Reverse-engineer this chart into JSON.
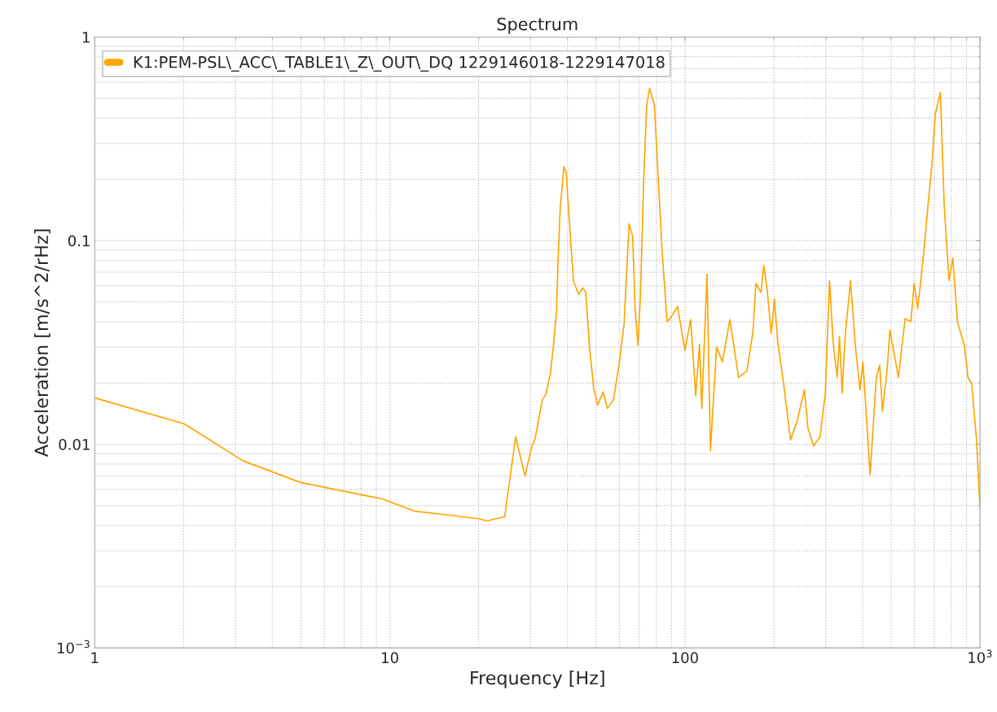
{
  "chart_data": {
    "type": "line",
    "title": "Spectrum",
    "xlabel": "Frequency [Hz]",
    "ylabel": "Acceleration [m/s^2/rHz]",
    "log": "xy",
    "grid": true,
    "legend": "top left",
    "marker": "none",
    "line_style": "solid",
    "xlim": [
      1,
      1000
    ],
    "xticks": [
      1,
      10,
      100,
      {
        "value": 1000,
        "label": "10$^{3}$"
      }
    ],
    "ylim": [
      0.001,
      1
    ],
    "yticks": [
      {
        "value": 0.001,
        "label": "10$^{−3}$"
      },
      0.01,
      0.1,
      1
    ],
    "series": [
      {
        "name": "K1:PEM-PSL\\_ACC\\_TABLE1\\_Z\\_OUT\\_DQ 1229146018-1229147018",
        "color": "#ffa500",
        "x": [
          1,
          2.01,
          3.18,
          4.97,
          8.28,
          9.4,
          12.1,
          16.7,
          20.2,
          21.3,
          22.7,
          24.5,
          26.7,
          28.7,
          30.3,
          31.0,
          32.9,
          33.8,
          35.0,
          35.8,
          36.7,
          37.1,
          37.8,
          38.9,
          39.6,
          40.6,
          41.9,
          43.6,
          45.1,
          46.1,
          47.5,
          49.1,
          50.6,
          52.8,
          54.6,
          57.3,
          60.0,
          62.2,
          63.6,
          64.7,
          66.5,
          67.8,
          69.3,
          70.7,
          72.5,
          74.2,
          75.9,
          78.8,
          81.2,
          83.7,
          87.0,
          89.0,
          94.4,
          100,
          104.6,
          108.8,
          112.1,
          114,
          118.8,
          122,
          128,
          134,
          142,
          152,
          162,
          170,
          174,
          181,
          185,
          190,
          196,
          201,
          206,
          216,
          228,
          240,
          254,
          261,
          273,
          287,
          299,
          309,
          318,
          328,
          334,
          341,
          349,
          364,
          378,
          392,
          401,
          424,
          445,
          457,
          467,
          484,
          495,
          529,
          557,
          583,
          598,
          615,
          640,
          665,
          687,
          705,
          734,
          756,
          785,
          809,
          838,
          886,
          910,
          937,
          973,
          1000
        ],
        "values": [
          0.0169,
          0.0126,
          0.0083,
          0.0065,
          0.0056,
          0.0054,
          0.0047,
          0.00445,
          0.0043,
          0.0042,
          0.0043,
          0.0044,
          0.0109,
          0.007,
          0.0098,
          0.0105,
          0.0166,
          0.0176,
          0.0223,
          0.03,
          0.0445,
          0.075,
          0.146,
          0.231,
          0.217,
          0.123,
          0.0635,
          0.0545,
          0.0586,
          0.056,
          0.03,
          0.0188,
          0.0156,
          0.0181,
          0.015,
          0.0166,
          0.0254,
          0.039,
          0.075,
          0.121,
          0.105,
          0.0463,
          0.0306,
          0.0545,
          0.201,
          0.462,
          0.56,
          0.462,
          0.201,
          0.089,
          0.04,
          0.0414,
          0.0474,
          0.029,
          0.041,
          0.0173,
          0.031,
          0.015,
          0.0685,
          0.0093,
          0.03,
          0.0254,
          0.041,
          0.0213,
          0.0229,
          0.0356,
          0.0616,
          0.0556,
          0.0758,
          0.0575,
          0.035,
          0.0516,
          0.0325,
          0.0198,
          0.0105,
          0.013,
          0.0185,
          0.012,
          0.0098,
          0.0109,
          0.0178,
          0.0635,
          0.0313,
          0.0213,
          0.0338,
          0.0178,
          0.0338,
          0.0635,
          0.0304,
          0.0185,
          0.0254,
          0.0071,
          0.0213,
          0.0245,
          0.0145,
          0.0229,
          0.0364,
          0.0213,
          0.0414,
          0.04,
          0.0616,
          0.0464,
          0.079,
          0.145,
          0.236,
          0.417,
          0.535,
          0.149,
          0.0635,
          0.082,
          0.04,
          0.0304,
          0.0213,
          0.0198,
          0.0105,
          0.0048
        ]
      }
    ]
  }
}
